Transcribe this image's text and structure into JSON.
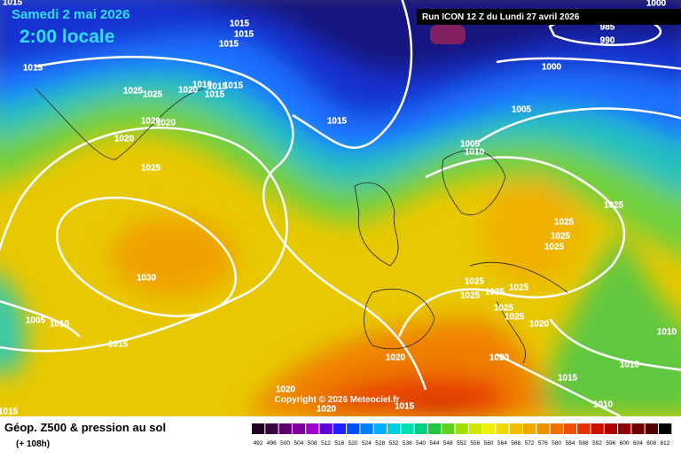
{
  "header": {
    "date": "Samedi 2 mai 2026",
    "time": "2:00 locale",
    "run": "Run ICON 12 Z du Lundi 27 avril 2026"
  },
  "isobar_labels": [
    1015,
    1015,
    1015,
    1015,
    1015,
    1025,
    1025,
    1020,
    1010,
    1015,
    1015,
    1015,
    1020,
    1020,
    1020,
    1025,
    1015,
    1000,
    985,
    990,
    1000,
    1005,
    1005,
    1010,
    1025,
    1025,
    1025,
    1025,
    1030,
    1005,
    1010,
    1015,
    1025,
    1025,
    1025,
    1025,
    1025,
    1025,
    1020,
    1010,
    1010,
    1015,
    1020,
    1020,
    1010,
    1020,
    1020,
    1015,
    1015
  ],
  "copyright": "Copyright © 2026 Meteociel.fr",
  "legend": {
    "title": "Géop. Z500 & pression au sol",
    "lead_time": "(+ 108h)",
    "scale": [
      492,
      496,
      500,
      504,
      508,
      512,
      516,
      520,
      524,
      528,
      532,
      536,
      540,
      544,
      548,
      552,
      556,
      560,
      564,
      568,
      572,
      576,
      580,
      584,
      588,
      592,
      596,
      600,
      604,
      608,
      612
    ]
  }
}
